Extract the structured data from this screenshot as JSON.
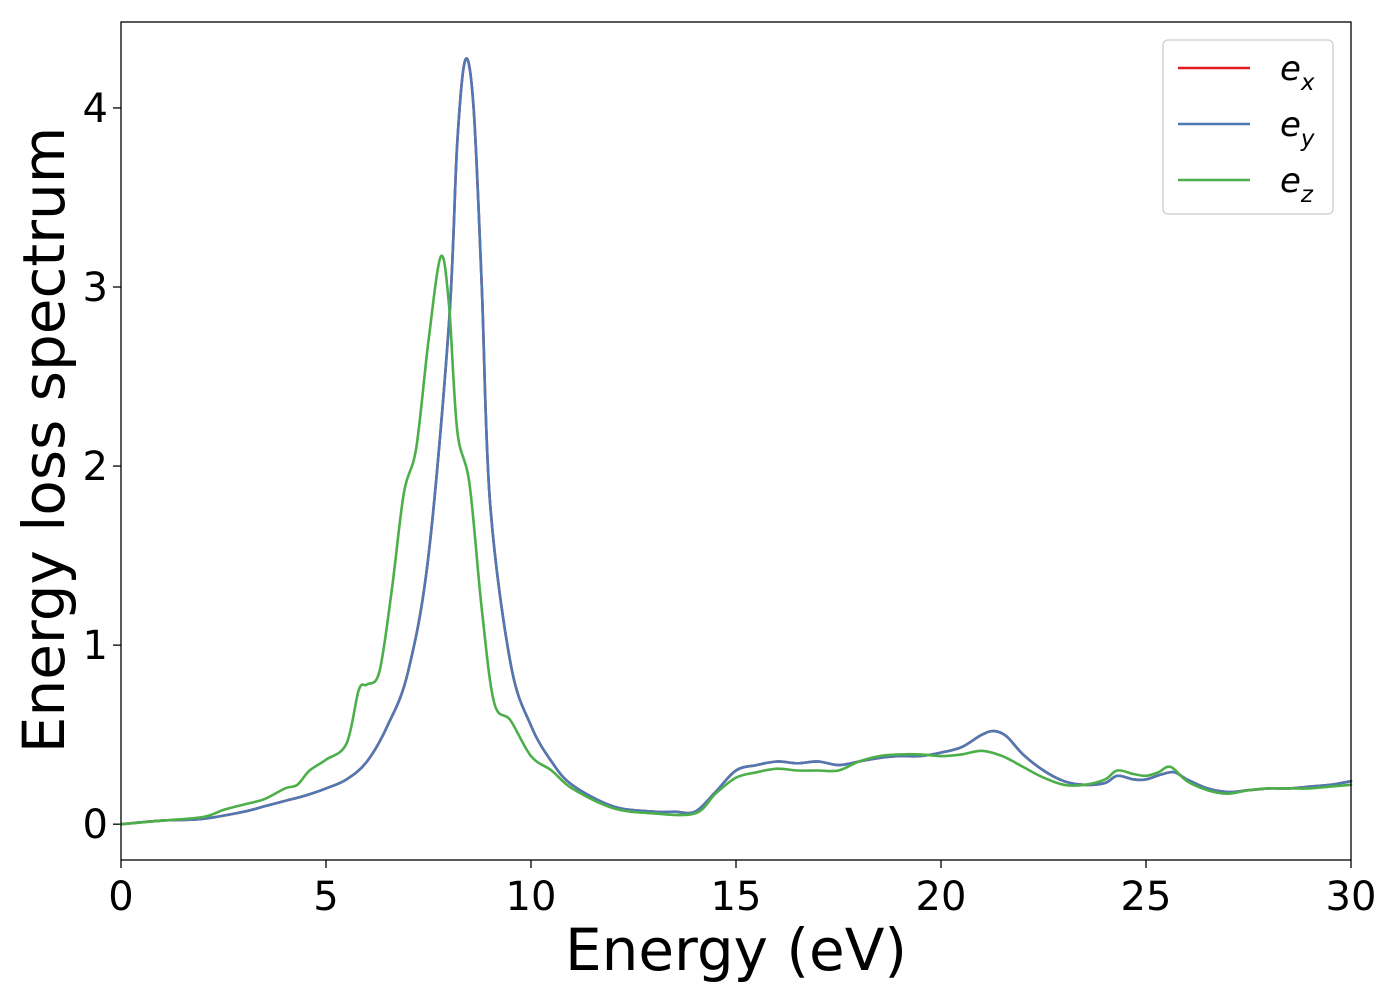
{
  "chart_data": {
    "type": "line",
    "title": "",
    "xlabel": "Energy (eV)",
    "ylabel": "Energy loss spectrum",
    "xlim": [
      0,
      30
    ],
    "ylim": [
      -0.2,
      4.48
    ],
    "xticks": [
      0,
      5,
      10,
      15,
      20,
      25,
      30
    ],
    "xtick_labels": [
      "0",
      "5",
      "10",
      "15",
      "20",
      "25",
      "30"
    ],
    "yticks": [
      0,
      1,
      2,
      3,
      4
    ],
    "ytick_labels": [
      "0",
      "1",
      "2",
      "3",
      "4"
    ],
    "grid": false,
    "legend_position": "top-right",
    "series": [
      {
        "name": "e",
        "subscript": "x",
        "color": "#e41a1c",
        "x": [
          0,
          1,
          2,
          3,
          3.5,
          4,
          4.5,
          5,
          5.5,
          6,
          6.5,
          7,
          7.5,
          8,
          8.2,
          8.4,
          8.6,
          8.8,
          9,
          9.5,
          10,
          10.5,
          11,
          12,
          13,
          13.5,
          14,
          14.5,
          15,
          15.5,
          16,
          16.5,
          17,
          17.5,
          18,
          18.5,
          19,
          19.5,
          20,
          20.5,
          21,
          21.3,
          21.6,
          22,
          22.5,
          23,
          23.5,
          24,
          24.3,
          24.7,
          25,
          25.4,
          25.7,
          26,
          26.5,
          27,
          27.5,
          28,
          28.5,
          29,
          29.5,
          30
        ],
        "y": [
          0.0,
          0.02,
          0.03,
          0.07,
          0.1,
          0.13,
          0.16,
          0.2,
          0.25,
          0.35,
          0.55,
          0.85,
          1.5,
          2.8,
          3.8,
          4.27,
          4.0,
          3.0,
          1.8,
          0.9,
          0.55,
          0.35,
          0.22,
          0.1,
          0.07,
          0.07,
          0.07,
          0.18,
          0.3,
          0.33,
          0.35,
          0.34,
          0.35,
          0.33,
          0.35,
          0.37,
          0.38,
          0.38,
          0.4,
          0.43,
          0.5,
          0.52,
          0.49,
          0.39,
          0.3,
          0.24,
          0.22,
          0.23,
          0.27,
          0.25,
          0.25,
          0.28,
          0.29,
          0.25,
          0.2,
          0.18,
          0.19,
          0.2,
          0.2,
          0.21,
          0.22,
          0.24
        ]
      },
      {
        "name": "e",
        "subscript": "y",
        "color": "#4e79b2",
        "x": [
          0,
          1,
          2,
          3,
          3.5,
          4,
          4.5,
          5,
          5.5,
          6,
          6.5,
          7,
          7.5,
          8,
          8.2,
          8.4,
          8.6,
          8.8,
          9,
          9.5,
          10,
          10.5,
          11,
          12,
          13,
          13.5,
          14,
          14.5,
          15,
          15.5,
          16,
          16.5,
          17,
          17.5,
          18,
          18.5,
          19,
          19.5,
          20,
          20.5,
          21,
          21.3,
          21.6,
          22,
          22.5,
          23,
          23.5,
          24,
          24.3,
          24.7,
          25,
          25.4,
          25.7,
          26,
          26.5,
          27,
          27.5,
          28,
          28.5,
          29,
          29.5,
          30
        ],
        "y": [
          0.0,
          0.02,
          0.03,
          0.07,
          0.1,
          0.13,
          0.16,
          0.2,
          0.25,
          0.35,
          0.55,
          0.85,
          1.5,
          2.8,
          3.8,
          4.27,
          4.0,
          3.0,
          1.8,
          0.9,
          0.55,
          0.35,
          0.22,
          0.1,
          0.07,
          0.07,
          0.07,
          0.18,
          0.3,
          0.33,
          0.35,
          0.34,
          0.35,
          0.33,
          0.35,
          0.37,
          0.38,
          0.38,
          0.4,
          0.43,
          0.5,
          0.52,
          0.49,
          0.39,
          0.3,
          0.24,
          0.22,
          0.23,
          0.27,
          0.25,
          0.25,
          0.28,
          0.29,
          0.25,
          0.2,
          0.18,
          0.19,
          0.2,
          0.2,
          0.21,
          0.22,
          0.24
        ]
      },
      {
        "name": "e",
        "subscript": "z",
        "color": "#4daf4a",
        "x": [
          0,
          1,
          2,
          2.5,
          3,
          3.5,
          4,
          4.3,
          4.6,
          5,
          5.5,
          5.8,
          6,
          6.3,
          6.6,
          6.9,
          7.2,
          7.5,
          7.8,
          8.0,
          8.2,
          8.5,
          8.8,
          9.1,
          9.5,
          10,
          10.5,
          11,
          12,
          13,
          14,
          14.5,
          15,
          15.5,
          16,
          16.5,
          17,
          17.5,
          18,
          18.5,
          19,
          19.5,
          20,
          20.5,
          21,
          21.5,
          22,
          22.5,
          23,
          23.5,
          24,
          24.3,
          24.7,
          25,
          25.3,
          25.6,
          26,
          26.5,
          27,
          27.5,
          28,
          28.5,
          29,
          29.5,
          30
        ],
        "y": [
          0.0,
          0.02,
          0.04,
          0.08,
          0.11,
          0.14,
          0.2,
          0.22,
          0.3,
          0.36,
          0.45,
          0.75,
          0.78,
          0.85,
          1.3,
          1.85,
          2.1,
          2.7,
          3.17,
          2.9,
          2.2,
          1.9,
          1.2,
          0.68,
          0.58,
          0.38,
          0.3,
          0.2,
          0.09,
          0.06,
          0.06,
          0.17,
          0.26,
          0.29,
          0.31,
          0.3,
          0.3,
          0.3,
          0.35,
          0.38,
          0.39,
          0.39,
          0.38,
          0.39,
          0.41,
          0.38,
          0.32,
          0.26,
          0.22,
          0.22,
          0.25,
          0.3,
          0.28,
          0.27,
          0.29,
          0.32,
          0.24,
          0.19,
          0.17,
          0.19,
          0.2,
          0.2,
          0.2,
          0.21,
          0.22
        ]
      }
    ]
  }
}
